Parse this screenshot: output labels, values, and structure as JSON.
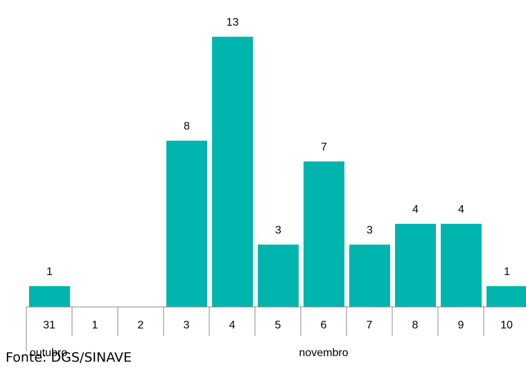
{
  "chart_data": {
    "type": "bar",
    "categories": [
      "31",
      "1",
      "2",
      "3",
      "4",
      "5",
      "6",
      "7",
      "8",
      "9",
      "10"
    ],
    "values": [
      1,
      0,
      0,
      8,
      13,
      3,
      7,
      3,
      4,
      4,
      1
    ],
    "data_labels": [
      "1",
      "",
      "",
      "8",
      "13",
      "3",
      "7",
      "3",
      "4",
      "4",
      "1"
    ],
    "month_labels": [
      "outubro",
      "novembro"
    ],
    "bar_color": "#00b5ad",
    "grid": false,
    "legend": "none"
  },
  "source": "Fonte: DGS/SINAVE"
}
